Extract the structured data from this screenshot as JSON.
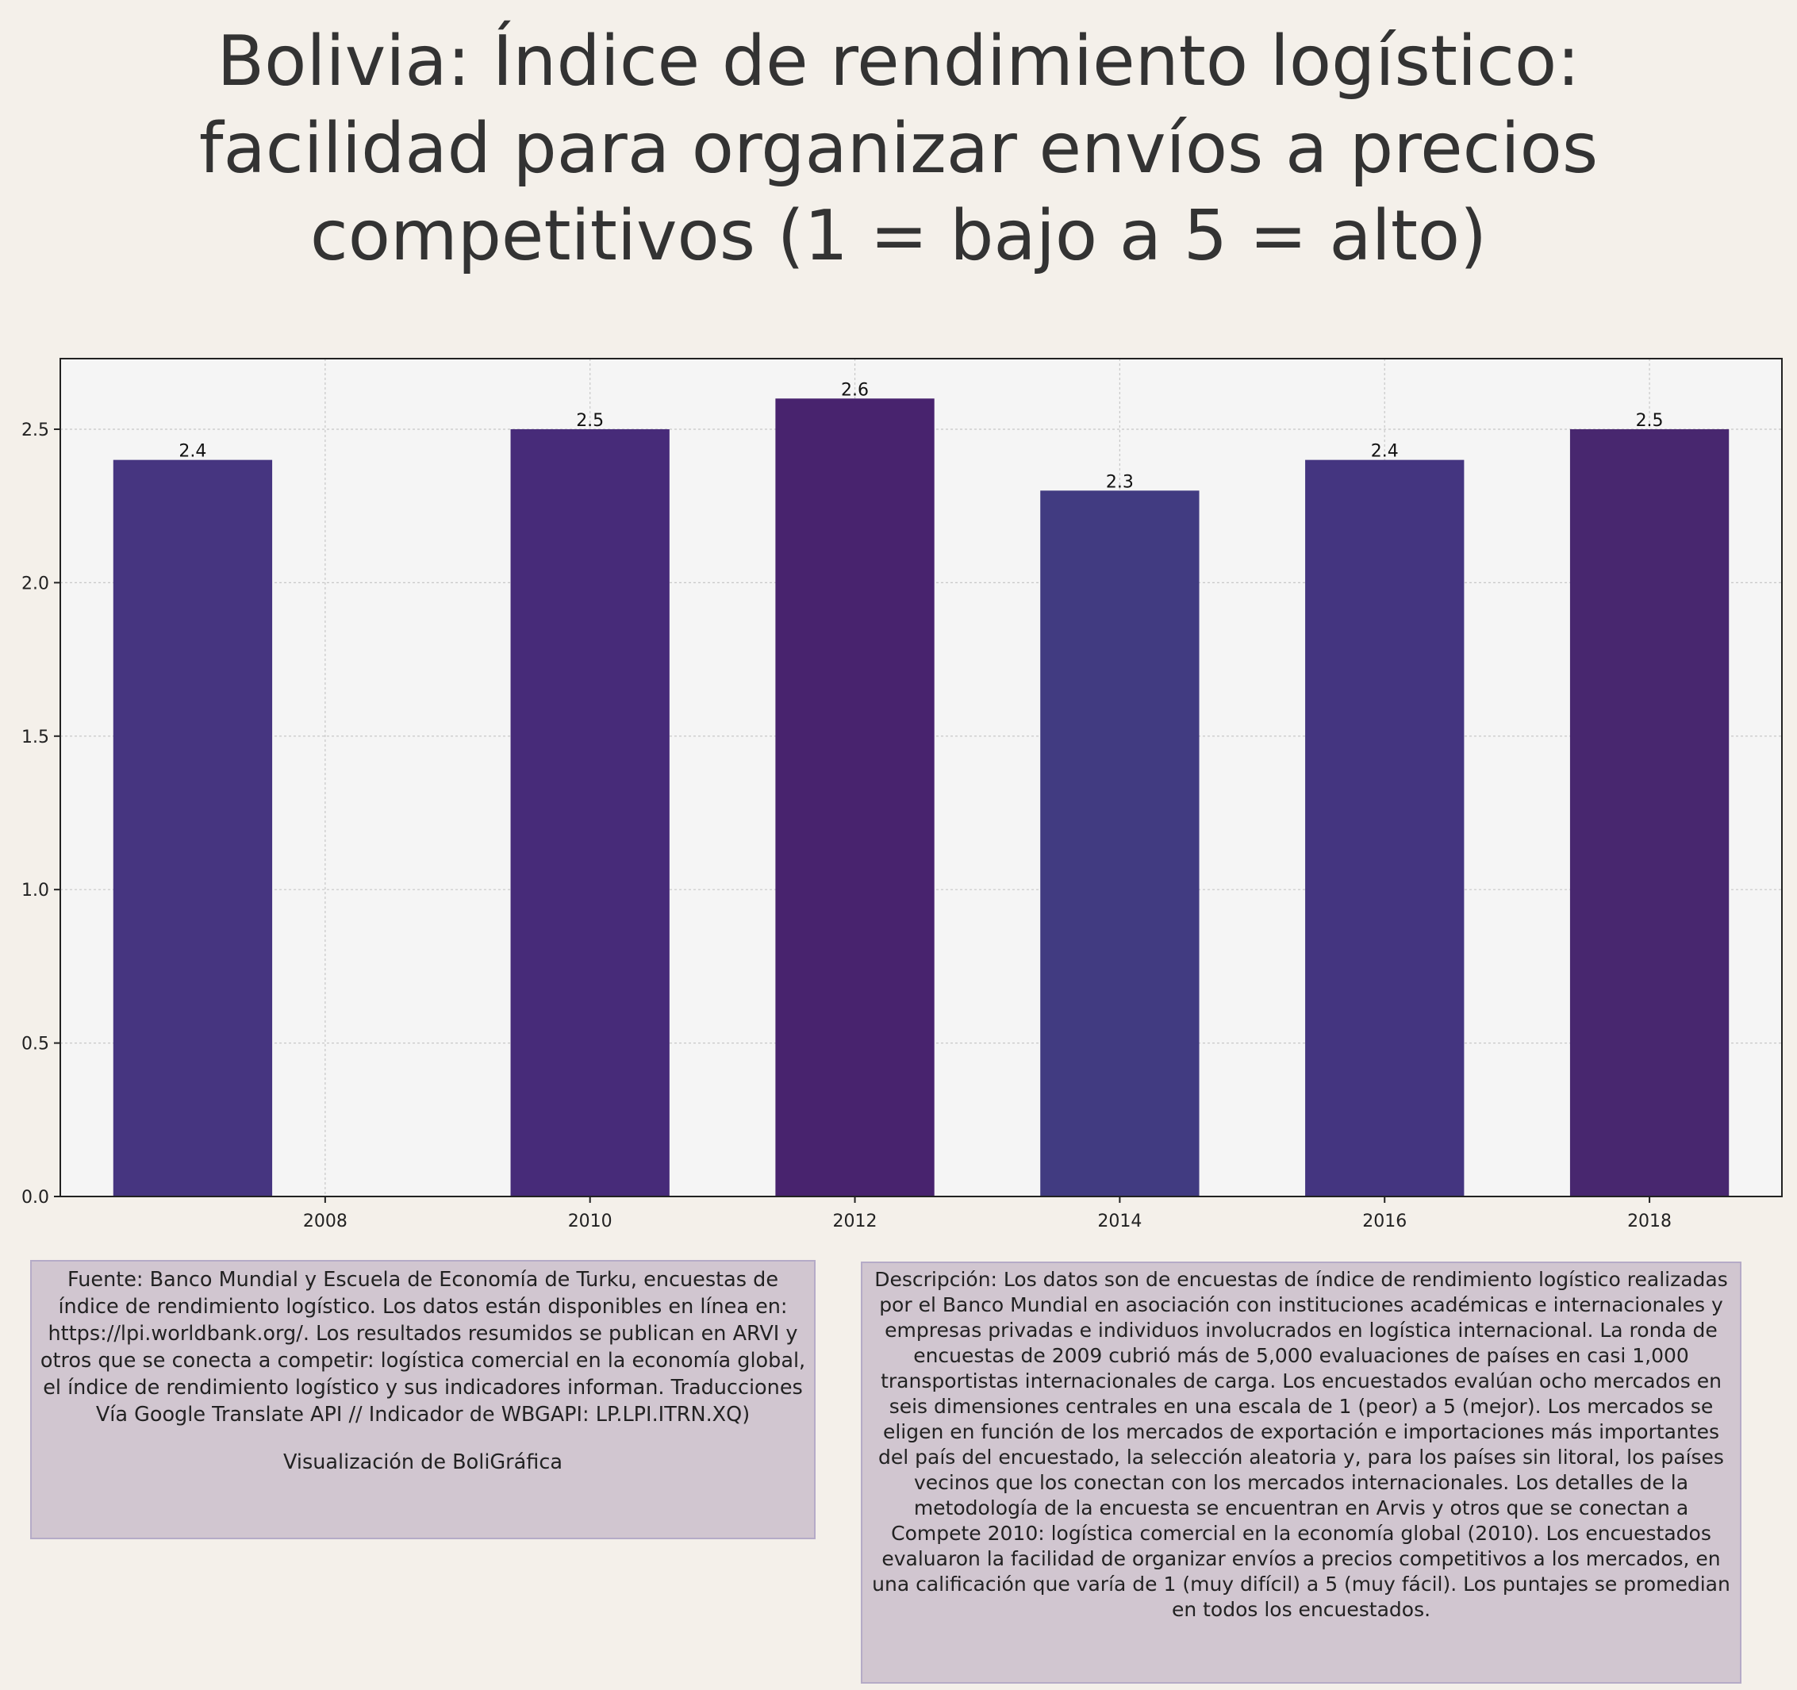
{
  "title_lines": [
    "Bolivia:  Índice de rendimiento logístico:",
    "facilidad para organizar envíos a precios",
    "competitivos (1 = bajo a 5 = alto)"
  ],
  "colors": {
    "background": "#f4f0ea",
    "plot_background": "#f5f5f5",
    "bars": [
      "#463580",
      "#472b79",
      "#48236e",
      "#413b81",
      "#443580",
      "#48276f"
    ]
  },
  "chart_data": {
    "type": "bar",
    "x": [
      2007,
      2010,
      2012,
      2014,
      2016,
      2018
    ],
    "values": [
      2.4,
      2.5,
      2.6,
      2.3,
      2.4,
      2.5
    ],
    "data_labels": [
      "2.4",
      "2.5",
      "2.6",
      "2.3",
      "2.4",
      "2.5"
    ],
    "xticks": [
      "2008",
      "2010",
      "2012",
      "2014",
      "2016",
      "2018"
    ],
    "yticks": [
      "0.0",
      "0.5",
      "1.0",
      "1.5",
      "2.0",
      "2.5"
    ],
    "xlim": [
      2006.0,
      2019.0
    ],
    "ylim": [
      0,
      2.73
    ],
    "grid": true,
    "xlabel": "",
    "ylabel": ""
  },
  "source": {
    "text": "Fuente: Banco Mundial y Escuela de Economía de Turku, encuestas de índice de rendimiento logístico. Los datos están disponibles en línea en: https://lpi.worldbank.org/. Los resultados resumidos se publican en ARVI y otros que se conecta a competir: logística comercial en la economía global, el índice de rendimiento logístico y sus indicadores informan. Traducciones Vía Google Translate API // Indicador de WBGAPI: LP.LPI.ITRN.XQ)",
    "credit": "Visualización de BoliGráfica"
  },
  "description": {
    "text": "Descripción: Los datos son de encuestas de índice de rendimiento logístico realizadas por el Banco Mundial en asociación con instituciones académicas e internacionales y empresas privadas e individuos involucrados en logística internacional. La ronda de encuestas de 2009 cubrió más de 5,000 evaluaciones de países en casi 1,000 transportistas internacionales de carga. Los encuestados evalúan ocho mercados en seis dimensiones centrales en una escala de 1 (peor) a 5 (mejor). Los mercados se eligen en función de los mercados de exportación e importaciones más importantes del país del encuestado, la selección aleatoria y, para los países sin litoral, los países vecinos que los conectan con los mercados internacionales. Los detalles de la metodología de la encuesta se encuentran en Arvis y otros que se conectan a Compete 2010: logística comercial en la economía global (2010). Los encuestados evaluaron la facilidad de organizar envíos a precios competitivos a los mercados, en una calificación que varía de 1 (muy difícil) a 5 (muy fácil). Los puntajes se promedian en todos los encuestados."
  }
}
